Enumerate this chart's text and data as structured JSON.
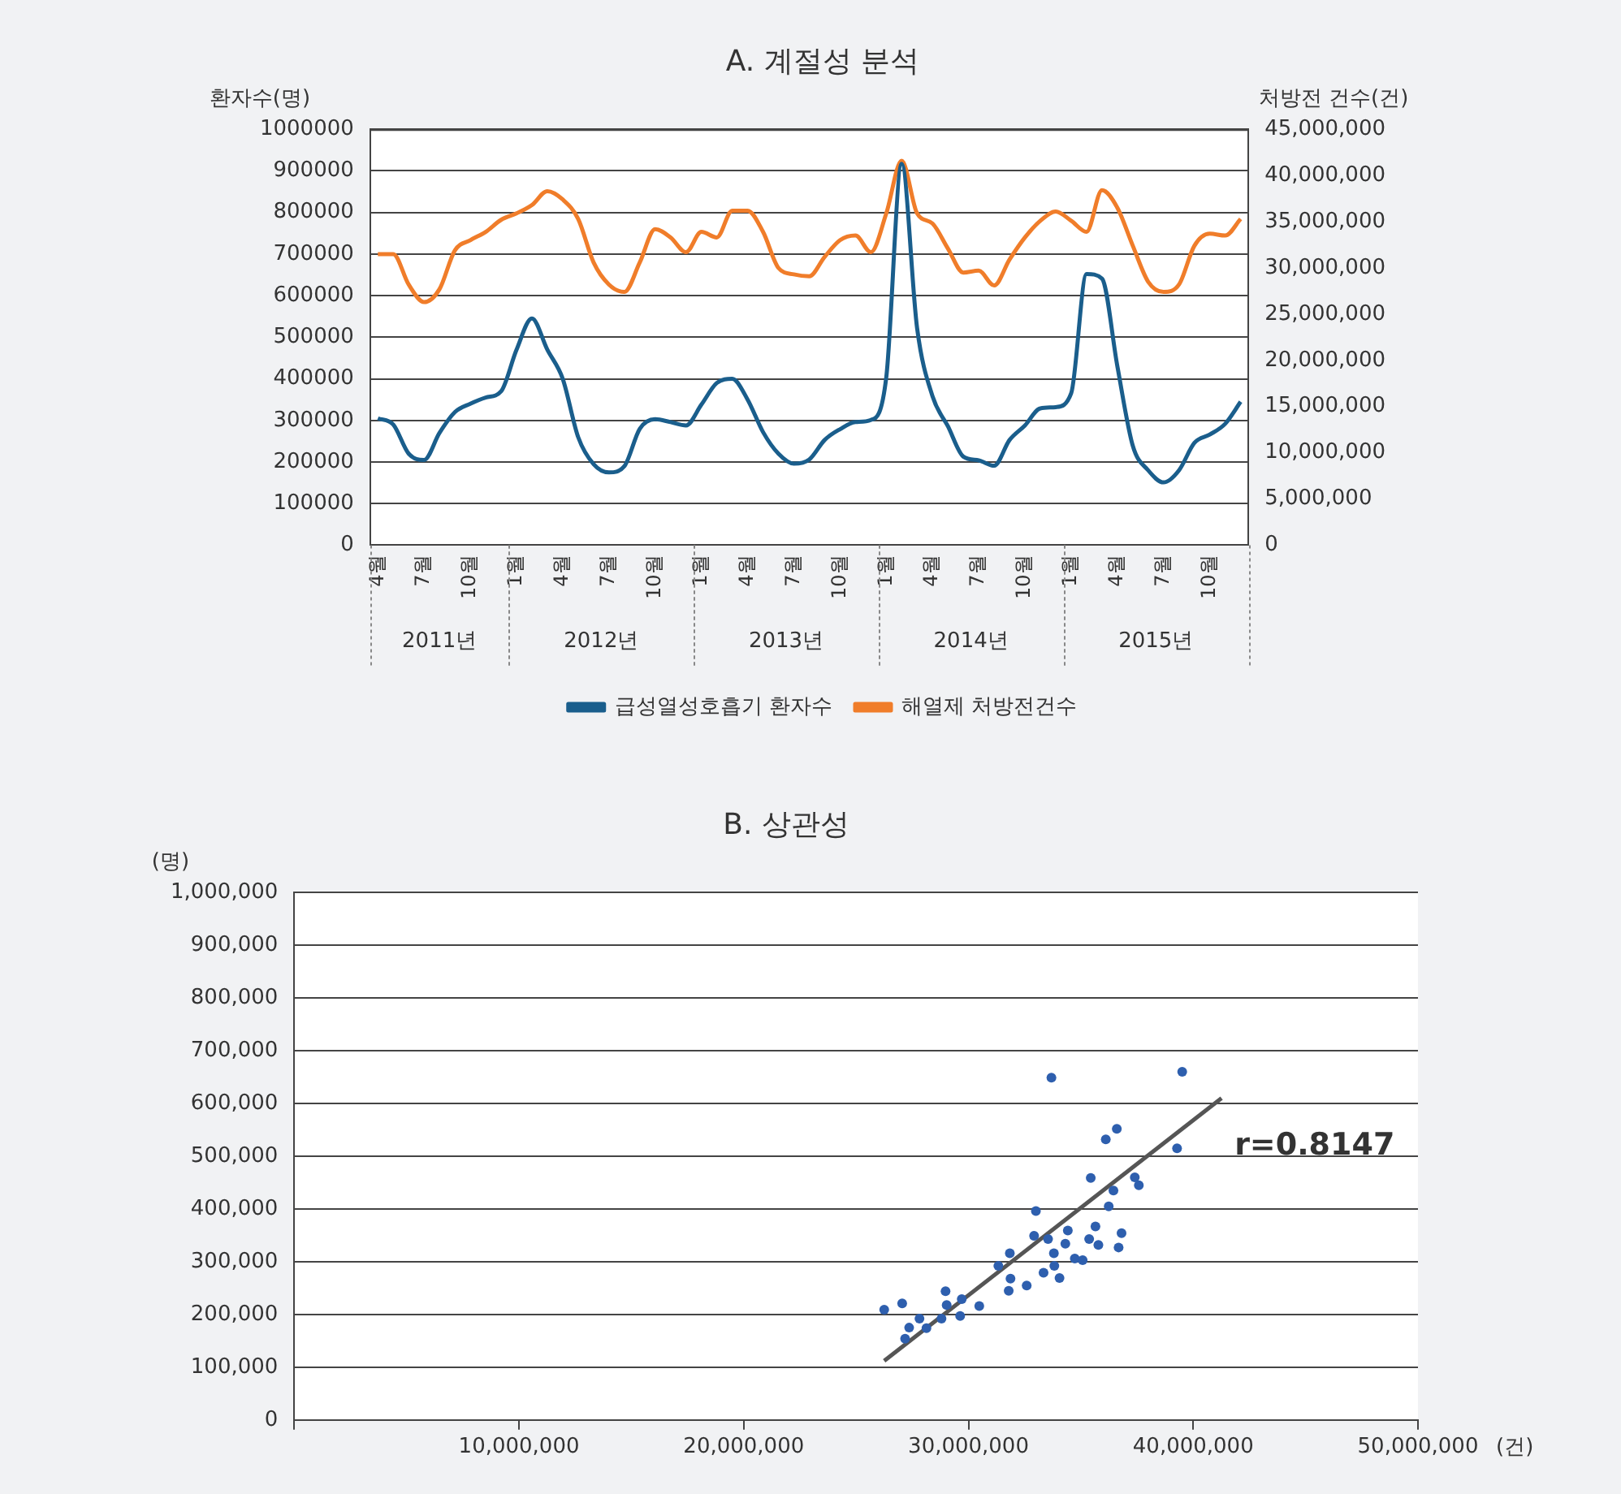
{
  "chart_data": [
    {
      "type": "line",
      "title": "A. 계절성 분석",
      "ylabel": "환자수(명)",
      "y2label": "처방전 건수(건)",
      "categories": [
        "4월",
        null,
        null,
        "7월",
        null,
        null,
        "10월",
        null,
        null,
        "1월",
        null,
        null,
        "4월",
        null,
        null,
        "7월",
        null,
        null,
        "10월",
        null,
        null,
        "1월",
        null,
        null,
        "4월",
        null,
        null,
        "7월",
        null,
        null,
        "10월",
        null,
        null,
        "1월",
        null,
        null,
        "4월",
        null,
        null,
        "7월",
        null,
        null,
        "10월",
        null,
        null,
        "1월",
        null,
        null,
        "4월",
        null,
        null,
        "7월",
        null,
        null,
        "10월",
        null,
        null
      ],
      "series": [
        {
          "name": "급성열성호흡기 환자수",
          "color": "#1a5e8c",
          "values": [
            305000,
            290000,
            220000,
            205000,
            270000,
            320000,
            340000,
            355000,
            370000,
            470000,
            545000,
            470000,
            400000,
            260000,
            195000,
            175000,
            190000,
            280000,
            303000,
            296000,
            288000,
            338000,
            390000,
            400000,
            350000,
            272000,
            220000,
            196000,
            206000,
            253000,
            279000,
            296000,
            301000,
            404000,
            917000,
            522000,
            358000,
            286000,
            213000,
            204000,
            191000,
            253000,
            288000,
            329000,
            332000,
            365000,
            652000,
            641000,
            430000,
            239000,
            180000,
            151000,
            180000,
            246000,
            266000,
            292000,
            345000
          ]
        },
        {
          "name": "해열제 처방전건수",
          "color": "#f07d2a",
          "axis": "y2",
          "values": [
            31500000,
            31500000,
            28200000,
            26300000,
            27700000,
            31900000,
            33000000,
            33900000,
            35200000,
            35900000,
            36800000,
            38300000,
            37400000,
            35300000,
            30600000,
            28200000,
            27400000,
            30600000,
            34200000,
            33300000,
            31700000,
            33900000,
            33300000,
            36200000,
            36200000,
            33900000,
            30000000,
            29300000,
            29100000,
            31200000,
            33000000,
            33500000,
            31700000,
            35900000,
            41600000,
            35900000,
            34800000,
            32100000,
            29500000,
            29700000,
            28100000,
            30900000,
            33300000,
            35100000,
            36100000,
            35100000,
            33900000,
            38400000,
            36500000,
            32400000,
            28500000,
            27400000,
            28200000,
            32400000,
            33700000,
            33500000,
            35300000
          ]
        }
      ],
      "ylim": [
        0,
        1000000
      ],
      "yticks": [
        0,
        100000,
        200000,
        300000,
        400000,
        500000,
        600000,
        700000,
        800000,
        900000,
        1000000
      ],
      "y2lim": [
        0,
        45000000
      ],
      "y2ticks": [
        0,
        {
          "value": 5000000,
          "label": "5,000,000"
        },
        {
          "value": 10000000,
          "label": "10,000,000"
        },
        {
          "value": 15000000,
          "label": "15,000,000"
        },
        {
          "value": 20000000,
          "label": "20,000,000"
        },
        {
          "value": 25000000,
          "label": "25,000,000"
        },
        {
          "value": 30000000,
          "label": "30,000,000"
        },
        {
          "value": 35000000,
          "label": "35,000,000"
        },
        {
          "value": 40000000,
          "label": "40,000,000"
        },
        {
          "value": 45000000,
          "label": "45,000,000"
        }
      ],
      "annotations": [
        "2011년",
        "2012년",
        "2013년",
        "2014년",
        "2015년"
      ],
      "grid": "y",
      "legend": "bottom",
      "marker": "none",
      "line_style": "solid"
    },
    {
      "type": "scatter",
      "title": "B. 상관성",
      "ylabel": "(명)",
      "xlabel": "(건)",
      "series": [
        {
          "type": "scatter",
          "color": "#2e5fae",
          "x": [
            26250000,
            27050000,
            27360000,
            27180000,
            27820000,
            28130000,
            28800000,
            28980000,
            29030000,
            29630000,
            29700000,
            30480000,
            31330000,
            31790000,
            31870000,
            31840000,
            32590000,
            33000000,
            32920000,
            33340000,
            33540000,
            33690000,
            33800000,
            33820000,
            34050000,
            34310000,
            34420000,
            34730000,
            35080000,
            35370000,
            35440000,
            35650000,
            35780000,
            36110000,
            36240000,
            36450000,
            36600000,
            36680000,
            36810000,
            37400000,
            37580000,
            39280000,
            39510000
          ],
          "values": [
            209000,
            221000,
            175000,
            154000,
            192000,
            174000,
            192000,
            244000,
            218000,
            197000,
            229000,
            216000,
            292000,
            245000,
            268000,
            316000,
            255000,
            396000,
            349000,
            279000,
            343000,
            649000,
            316000,
            292000,
            269000,
            334000,
            359000,
            306000,
            303000,
            343000,
            459000,
            367000,
            332000,
            532000,
            405000,
            435000,
            552000,
            327000,
            354000,
            460000,
            445000,
            515000,
            660000
          ]
        },
        {
          "type": "line",
          "color": "#555555",
          "marker": "none",
          "x": [
            26250000,
            41260000
          ],
          "values": [
            112000,
            610000
          ]
        }
      ],
      "xlim": [
        0,
        50000000
      ],
      "xticks": [
        {
          "value": 0,
          "label": null
        },
        {
          "value": 10000000,
          "label": "10,000,000"
        },
        {
          "value": 20000000,
          "label": "20,000,000"
        },
        {
          "value": 30000000,
          "label": "30,000,000"
        },
        {
          "value": 40000000,
          "label": "40,000,000"
        },
        {
          "value": 50000000,
          "label": "50,000,000"
        }
      ],
      "ylim": [
        0,
        1000000
      ],
      "yticks": [
        0,
        {
          "value": 100000,
          "label": "100,000"
        },
        {
          "value": 200000,
          "label": "200,000"
        },
        {
          "value": 300000,
          "label": "300,000"
        },
        {
          "value": 400000,
          "label": "400,000"
        },
        {
          "value": 500000,
          "label": "500,000"
        },
        {
          "value": 600000,
          "label": "600,000"
        },
        {
          "value": 700000,
          "label": "700,000"
        },
        {
          "value": 800000,
          "label": "800,000"
        },
        {
          "value": 900000,
          "label": "900,000"
        },
        {
          "value": 1000000,
          "label": "1,000,000"
        }
      ],
      "annotations": [
        "r=0.8147"
      ],
      "grid": "y",
      "marker": "circle"
    }
  ]
}
